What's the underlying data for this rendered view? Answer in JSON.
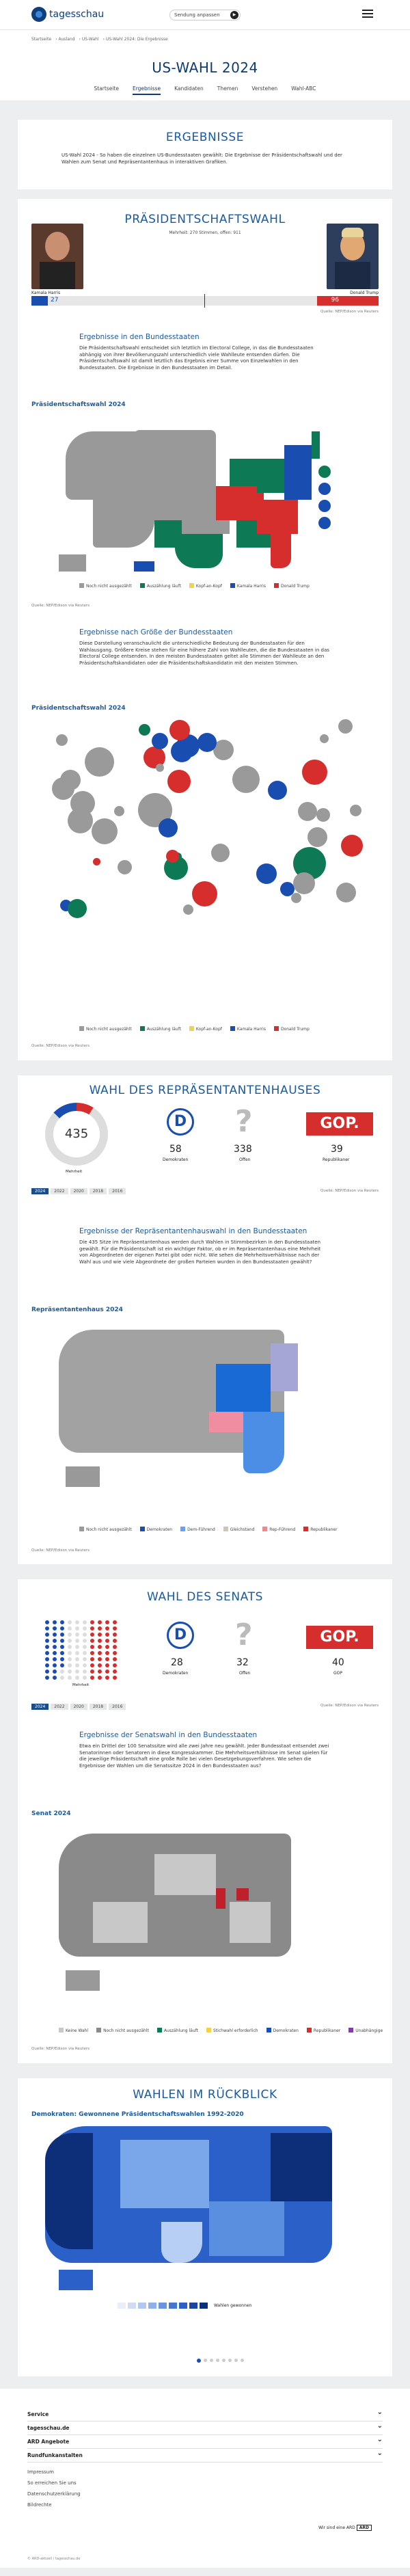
{
  "header": {
    "logo_text": "tagesschau",
    "listen_label": "Sendung anpassen"
  },
  "breadcrumb": [
    "Startseite",
    "Ausland",
    "US-Wahl",
    "US-Wahl 2024: Die Ergebnisse"
  ],
  "page_title": "US-WAHL 2024",
  "tabs": [
    "Startseite",
    "Ergebnisse",
    "Kandidaten",
    "Themen",
    "Verstehen",
    "Wahl-ABC"
  ],
  "ergebnisse": {
    "title": "ERGEBNISSE",
    "text": "US-Wahl 2024 - So haben die einzelnen US-Bundesstaaten gewählt: Die Ergebnisse der Präsidentschaftswahl und der Wahlen zum Senat und Repräsentantenhaus in interaktiven Grafiken."
  },
  "president": {
    "title": "PRÄSIDENTSCHAFTSWAHL",
    "majority": "Mehrheit: 270 Stimmen, offen: 911",
    "harris_name": "Kamala Harris",
    "trump_name": "Donald Trump",
    "harris_votes": "27",
    "trump_votes": "96",
    "source": "Quelle: NEP/Edison via Reuters"
  },
  "states": {
    "title": "Ergebnisse in den Bundesstaaten",
    "text": "Die Präsidentschaftswahl entscheidet sich letztlich im Electoral College, in das die Bundesstaaten abhängig von ihrer Bevölkerungszahl unterschiedlich viele Wahlleute entsenden dürfen. Die Präsidentschaftswahl ist damit letztlich das Ergebnis einer Summe von Einzelwahlen in den Bundesstaaten. Die Ergebnisse in den Bundesstaaten im Detail.",
    "label": "Präsidentschaftswahl 2024",
    "legend": [
      "Noch nicht ausgezählt",
      "Auszählung läuft",
      "Kopf-an-Kopf",
      "Kamala Harris",
      "Donald Trump"
    ],
    "source": "Quelle: NEP/Edison via Reuters"
  },
  "size": {
    "title": "Ergebnisse nach Größe der Bundesstaaten",
    "text": "Diese Darstellung veranschaulicht die unterschiedliche Bedeutung der Bundesstaaten für den Wahlausgang. Größere Kreise stehen für eine höhere Zahl von Wahlleuten, die die Bundesstaaten in das Electoral College entsenden. In den meisten Bundesstaaten geltet alle Stimmen der Wahlleute an den Präsidentschaftskandidaten oder die Präsidentschaftskandidatin mit den meisten Stimmen.",
    "label": "Präsidentschaftswahl 2024",
    "legend": [
      "Noch nicht ausgezählt",
      "Auszählung läuft",
      "Kopf-an-Kopf",
      "Kamala Harris",
      "Donald Trump"
    ],
    "source": "Quelle: NEP/Edison via Reuters"
  },
  "house": {
    "title": "WAHL DES REPRÄSENTANTENHAUSES",
    "total": "435",
    "majority_label": "Mehrheit",
    "dem": "58",
    "open": "338",
    "rep": "39",
    "dem_label": "Demokraten",
    "open_label": "Offen",
    "rep_label": "Republikaner",
    "years": [
      "2024",
      "2022",
      "2020",
      "2018",
      "2016"
    ],
    "source": "Quelle: NEP/Edison via Reuters",
    "sub": "Ergebnisse der Repräsentantenhauswahl in den Bundesstaaten",
    "text": "Die 435 Sitze im Repräsentantenhaus werden durch Wahlen in Stimmbezirken in den Bundesstaaten gewählt. Für die Präsidentschaft ist ein wichtiger Faktor, ob er im Repräsentantenhaus eine Mehrheit von Abgeordneten der eigenen Partei gibt oder nicht. Wie sehen die Mehrheitsverhältnisse nach der Wahl aus und wie viele Abgeordnete der großen Parteien wurden in den Bundesstaaten gewählt?",
    "label": "Repräsentantenhaus 2024",
    "legend": [
      "Noch nicht ausgezählt",
      "Demokraten",
      "Dem-Führend",
      "Gleichstand",
      "Rep-Führend",
      "Republikaner"
    ],
    "source2": "Quelle: NEP/Edison via Reuters"
  },
  "senate": {
    "title": "WAHL DES SENATS",
    "dem": "28",
    "open": "32",
    "rep": "40",
    "dem_label": "Demokraten",
    "open_label": "Offen",
    "rep_label": "GOP",
    "majority_label": "Mehrheit",
    "years": [
      "2024",
      "2022",
      "2020",
      "2018",
      "2016"
    ],
    "source": "Quelle: NEP/Edison via Reuters",
    "sub": "Ergebnisse der Senatswahl in den Bundesstaaten",
    "text": "Etwa ein Drittel der 100 Senatssitze wird alle zwei Jahre neu gewählt. Jeder Bundesstaat entsendet zwei Senatorinnen oder Senatoren in diese Kongresskammer. Die Mehrheitsverhältnisse im Senat spielen für die jeweilige Präsidentschaft eine große Rolle bei vielen Gesetzgebungsverfahren. Wie sehen die Ergebnisse der Wahlen um die Senatssitze 2024 in den Bundesstaaten aus?",
    "label": "Senat 2024",
    "legend": [
      "Keine Wahl",
      "Noch nicht ausgezählt",
      "Auszählung läuft",
      "Stichwahl erforderlich",
      "Demokraten",
      "Republikaner",
      "Unabhängige"
    ],
    "source2": "Quelle: NEP/Edison via Reuters"
  },
  "history": {
    "title": "WAHLEN IM RÜCKBLICK",
    "label": "Demokraten: Gewonnene Präsidentschaftswahlen 1992-2020",
    "legend": "Wahlen gewonnen",
    "scale": [
      "0",
      "1",
      "2",
      "3",
      "4",
      "5",
      "6",
      "7",
      "8"
    ]
  },
  "footer": {
    "items": [
      "Service",
      "tagesschau.de",
      "ARD Angebote",
      "Rundfunkanstalten"
    ],
    "links": [
      "Impressum",
      "So erreichen Sie uns",
      "Datenschutzerklärung",
      "Bildrechte"
    ],
    "copyright": "© ARD-aktuell / tagesschau.de",
    "ard": "Wir sind eine ARD"
  },
  "colors": {
    "blue": "#1a4db0",
    "red": "#d62d2d",
    "green": "#0d7a55",
    "gray": "#9a9a9a"
  }
}
